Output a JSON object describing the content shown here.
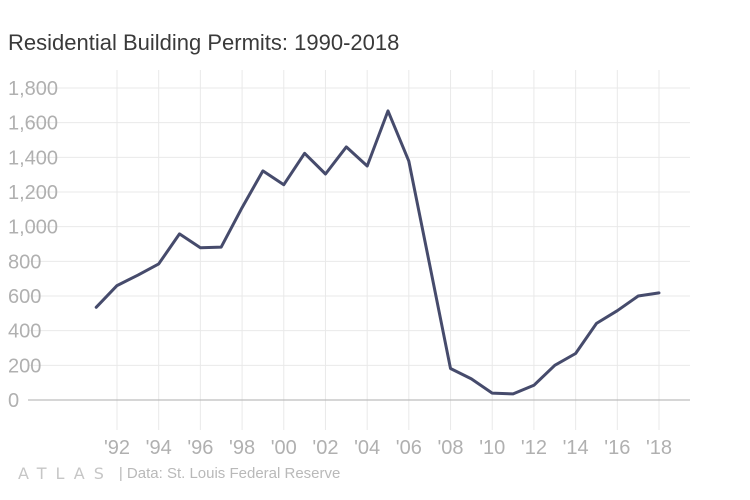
{
  "title": "Residential Building Permits: 1990-2018",
  "footer": {
    "brand": "ATLAS",
    "source": "| Data: St. Louis Federal Reserve"
  },
  "colors": {
    "line": "#464b6c",
    "grid": "#e9e9e9",
    "baseline": "#bdbdbd",
    "tick_text": "#b0b0b0",
    "title_text": "#3a3a3a"
  },
  "chart_data": {
    "type": "line",
    "title": "Residential Building Permits: 1990-2018",
    "xlabel": "",
    "ylabel": "",
    "xlim": [
      1990,
      2019
    ],
    "ylim": [
      0,
      1800
    ],
    "yticks": [
      0,
      200,
      400,
      600,
      800,
      1000,
      1200,
      1400,
      1600,
      1800
    ],
    "ytick_labels": [
      "0",
      "200",
      "400",
      "600",
      "800",
      "1,000",
      "1,200",
      "1,400",
      "1,600",
      "1,800"
    ],
    "xticks": [
      1992,
      1994,
      1996,
      1998,
      2000,
      2002,
      2004,
      2006,
      2008,
      2010,
      2012,
      2014,
      2016,
      2018
    ],
    "xtick_labels": [
      "'92",
      "'94",
      "'96",
      "'98",
      "'00",
      "'02",
      "'04",
      "'06",
      "'08",
      "'10",
      "'12",
      "'14",
      "'16",
      "'18"
    ],
    "grid": true,
    "series": [
      {
        "x": [
          1991,
          1992,
          1993,
          1994,
          1995,
          1996,
          1997,
          1998,
          1999,
          2000,
          2001,
          2002,
          2003,
          2004,
          2005,
          2006,
          2007,
          2008,
          2009,
          2010,
          2011,
          2012,
          2013,
          2014,
          2015,
          2016,
          2017,
          2018
        ],
        "values": [
          535,
          660,
          720,
          785,
          958,
          878,
          882,
          1110,
          1322,
          1242,
          1423,
          1304,
          1460,
          1350,
          1668,
          1378,
          780,
          182,
          122,
          40,
          35,
          85,
          200,
          268,
          442,
          515,
          600,
          618
        ]
      }
    ]
  }
}
